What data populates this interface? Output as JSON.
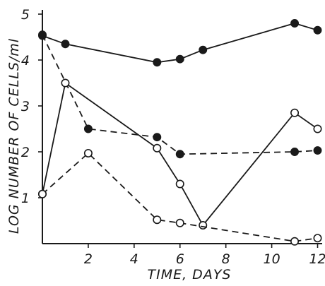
{
  "chart_data": {
    "type": "line",
    "xlabel": "TIME, DAYS",
    "ylabel": "LOG NUMBER OF CELLS/ml",
    "xlim": [
      0,
      12.2
    ],
    "ylim": [
      0,
      5
    ],
    "x_ticks": [
      2,
      4,
      6,
      8,
      10,
      12
    ],
    "y_ticks": [
      1,
      2,
      3,
      4,
      5
    ],
    "grid": false,
    "legend": "none",
    "series": [
      {
        "marker": "filled",
        "line": "solid",
        "x": [
          0,
          1,
          5,
          6,
          7,
          11,
          12
        ],
        "y": [
          4.53,
          4.35,
          3.95,
          4.02,
          4.22,
          4.8,
          4.65
        ]
      },
      {
        "marker": "filled",
        "line": "dashed",
        "x": [
          0,
          2,
          5,
          6,
          11,
          12
        ],
        "y": [
          4.55,
          2.5,
          2.32,
          1.95,
          2.0,
          2.03
        ]
      },
      {
        "marker": "open",
        "line": "solid",
        "x": [
          0,
          1,
          5,
          6,
          7,
          11,
          12
        ],
        "y": [
          1.08,
          3.5,
          2.08,
          1.3,
          0.4,
          2.85,
          2.5
        ]
      },
      {
        "marker": "open",
        "line": "dashed",
        "x": [
          0,
          2,
          5,
          6,
          11,
          12
        ],
        "y": [
          1.08,
          1.97,
          0.52,
          0.45,
          0.05,
          0.12
        ]
      }
    ]
  }
}
